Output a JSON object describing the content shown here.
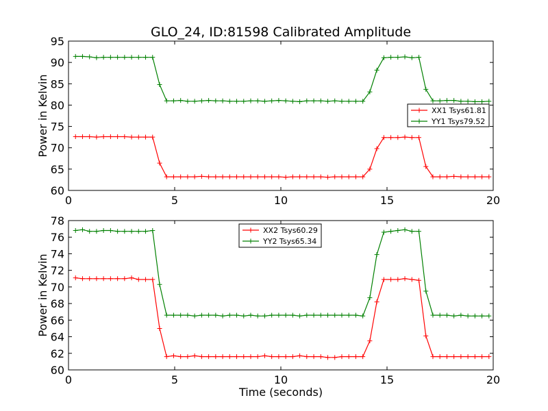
{
  "title": "GLO_24, ID:81598 Calibrated Amplitude",
  "colors": {
    "xx": "#ff0000",
    "yy": "#008000"
  },
  "chart_data": [
    {
      "type": "line",
      "xlabel": "",
      "ylabel": "Power in Kelvin",
      "xlim": [
        0,
        20
      ],
      "ylim": [
        60,
        95
      ],
      "xticks": [
        0,
        5,
        10,
        15,
        20
      ],
      "yticks": [
        60,
        65,
        70,
        75,
        80,
        85,
        90,
        95
      ],
      "grid": false,
      "legend": "right",
      "x": [
        0.33,
        0.66,
        0.99,
        1.32,
        1.65,
        1.98,
        2.31,
        2.64,
        2.97,
        3.3,
        3.63,
        3.96,
        4.29,
        4.62,
        4.95,
        5.28,
        5.61,
        5.94,
        6.27,
        6.6,
        6.93,
        7.26,
        7.59,
        7.92,
        8.25,
        8.58,
        8.91,
        9.24,
        9.57,
        9.9,
        10.23,
        10.56,
        10.89,
        11.22,
        11.55,
        11.88,
        12.21,
        12.54,
        12.87,
        13.2,
        13.53,
        13.86,
        14.19,
        14.52,
        14.85,
        15.18,
        15.51,
        15.84,
        16.17,
        16.5,
        16.83,
        17.16,
        17.49,
        17.82,
        18.15,
        18.48,
        18.81,
        19.14,
        19.47,
        19.8
      ],
      "series": [
        {
          "name": "XX1 Tsys61.81",
          "color": "#ff0000",
          "values": [
            72.6,
            72.6,
            72.6,
            72.5,
            72.6,
            72.6,
            72.6,
            72.6,
            72.5,
            72.5,
            72.5,
            72.5,
            66.4,
            63.2,
            63.2,
            63.2,
            63.2,
            63.2,
            63.3,
            63.2,
            63.2,
            63.2,
            63.2,
            63.2,
            63.2,
            63.2,
            63.2,
            63.2,
            63.2,
            63.2,
            63.1,
            63.2,
            63.2,
            63.2,
            63.2,
            63.2,
            63.1,
            63.2,
            63.2,
            63.2,
            63.2,
            63.2,
            65.0,
            69.8,
            72.4,
            72.4,
            72.4,
            72.5,
            72.4,
            72.4,
            65.6,
            63.2,
            63.2,
            63.2,
            63.3,
            63.2,
            63.2,
            63.2,
            63.2,
            63.2
          ]
        },
        {
          "name": "YY1 Tsys79.52",
          "color": "#008000",
          "values": [
            91.4,
            91.4,
            91.3,
            91.1,
            91.2,
            91.2,
            91.2,
            91.2,
            91.2,
            91.2,
            91.2,
            91.2,
            84.8,
            81.0,
            81.0,
            81.1,
            80.9,
            80.9,
            81.0,
            81.1,
            81.0,
            81.0,
            80.9,
            80.9,
            80.9,
            81.0,
            81.0,
            80.9,
            81.0,
            81.1,
            81.0,
            80.9,
            80.8,
            81.0,
            81.0,
            81.0,
            80.9,
            81.0,
            80.9,
            80.9,
            80.9,
            80.9,
            83.1,
            88.2,
            91.1,
            91.2,
            91.2,
            91.3,
            91.1,
            91.2,
            83.7,
            81.0,
            81.0,
            81.1,
            81.1,
            80.9,
            80.9,
            80.8,
            80.8,
            80.9
          ]
        }
      ]
    },
    {
      "type": "line",
      "xlabel": "Time (seconds)",
      "ylabel": "Power in Kelvin",
      "xlim": [
        0,
        20
      ],
      "ylim": [
        60,
        78
      ],
      "xticks": [
        0,
        5,
        10,
        15,
        20
      ],
      "yticks": [
        60,
        62,
        64,
        66,
        68,
        70,
        72,
        74,
        76,
        78
      ],
      "grid": false,
      "legend": "top-center",
      "x": [
        0.33,
        0.66,
        0.99,
        1.32,
        1.65,
        1.98,
        2.31,
        2.64,
        2.97,
        3.3,
        3.63,
        3.96,
        4.29,
        4.62,
        4.95,
        5.28,
        5.61,
        5.94,
        6.27,
        6.6,
        6.93,
        7.26,
        7.59,
        7.92,
        8.25,
        8.58,
        8.91,
        9.24,
        9.57,
        9.9,
        10.23,
        10.56,
        10.89,
        11.22,
        11.55,
        11.88,
        12.21,
        12.54,
        12.87,
        13.2,
        13.53,
        13.86,
        14.19,
        14.52,
        14.85,
        15.18,
        15.51,
        15.84,
        16.17,
        16.5,
        16.83,
        17.16,
        17.49,
        17.82,
        18.15,
        18.48,
        18.81,
        19.14,
        19.47,
        19.8
      ],
      "series": [
        {
          "name": "XX2 Tsys60.29",
          "color": "#ff0000",
          "values": [
            71.1,
            71.0,
            71.0,
            71.0,
            71.0,
            71.0,
            71.0,
            71.0,
            71.1,
            70.9,
            70.9,
            70.9,
            65.0,
            61.6,
            61.7,
            61.6,
            61.6,
            61.7,
            61.6,
            61.6,
            61.6,
            61.6,
            61.6,
            61.6,
            61.6,
            61.6,
            61.6,
            61.7,
            61.6,
            61.6,
            61.6,
            61.6,
            61.7,
            61.6,
            61.6,
            61.6,
            61.5,
            61.5,
            61.6,
            61.6,
            61.6,
            61.6,
            63.5,
            68.2,
            70.9,
            70.9,
            70.9,
            71.0,
            70.9,
            70.8,
            64.1,
            61.6,
            61.6,
            61.6,
            61.6,
            61.6,
            61.6,
            61.6,
            61.6,
            61.6
          ]
        },
        {
          "name": "YY2 Tsys65.34",
          "color": "#008000",
          "values": [
            76.8,
            76.9,
            76.7,
            76.7,
            76.8,
            76.8,
            76.7,
            76.7,
            76.7,
            76.7,
            76.7,
            76.8,
            70.3,
            66.6,
            66.6,
            66.6,
            66.6,
            66.5,
            66.6,
            66.6,
            66.6,
            66.5,
            66.6,
            66.6,
            66.5,
            66.6,
            66.5,
            66.5,
            66.6,
            66.6,
            66.6,
            66.6,
            66.5,
            66.6,
            66.6,
            66.6,
            66.6,
            66.6,
            66.6,
            66.6,
            66.6,
            66.5,
            68.7,
            73.9,
            76.6,
            76.7,
            76.8,
            76.9,
            76.7,
            76.7,
            69.5,
            66.6,
            66.6,
            66.6,
            66.5,
            66.6,
            66.5,
            66.5,
            66.5,
            66.5
          ]
        }
      ]
    }
  ]
}
